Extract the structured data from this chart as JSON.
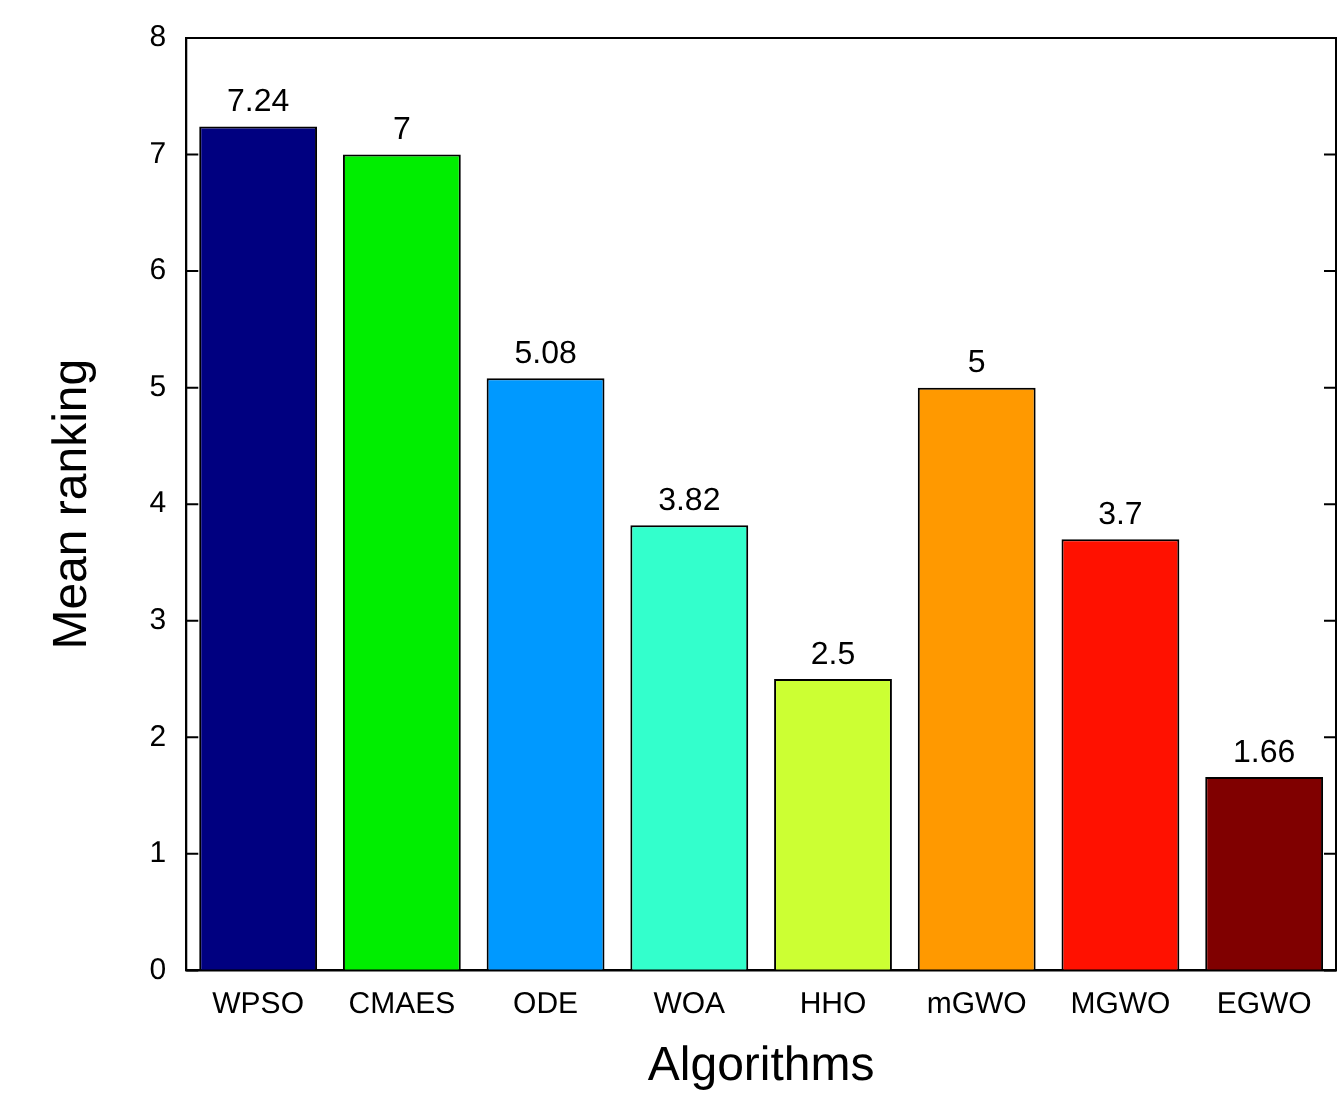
{
  "chart_data": {
    "type": "bar",
    "xlabel": "Algorithms",
    "ylabel": "Mean ranking",
    "categories": [
      "WPSO",
      "CMAES",
      "ODE",
      "WOA",
      "HHO",
      "mGWO",
      "MGWO",
      "EGWO"
    ],
    "values": [
      7.24,
      7,
      5.08,
      3.82,
      2.5,
      5,
      3.7,
      1.66
    ],
    "colors": [
      "#000080",
      "#00ee00",
      "#0099ff",
      "#33ffcc",
      "#ccff33",
      "#ff9900",
      "#ff1100",
      "#800000"
    ],
    "ylim": [
      0,
      8
    ],
    "yticks": [
      0,
      1,
      2,
      3,
      4,
      5,
      6,
      7,
      8
    ],
    "grid": false,
    "legend": false,
    "data_labels": true
  }
}
